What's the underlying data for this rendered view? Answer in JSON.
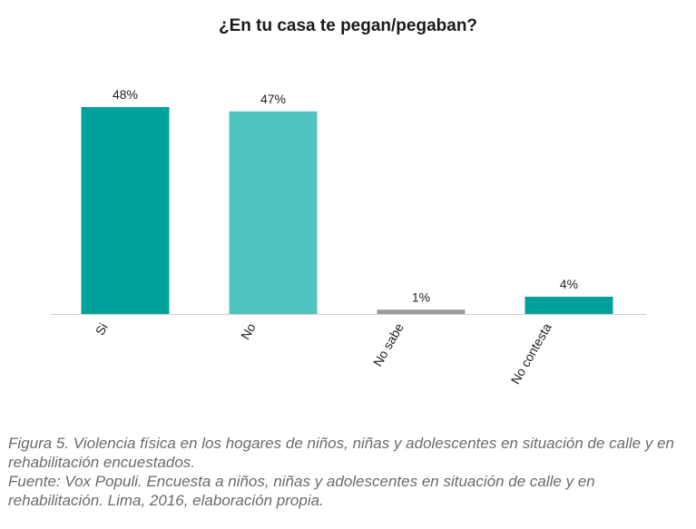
{
  "chart_data": {
    "type": "bar",
    "title": "¿En tu casa te pegan/pegaban?",
    "xlabel": "",
    "ylabel": "",
    "categories": [
      "Si",
      "No",
      "No sabe",
      "No contesta"
    ],
    "values": [
      48,
      47,
      1,
      4
    ],
    "value_labels": [
      "48%",
      "47%",
      "1%",
      "4%"
    ],
    "colors": [
      "#00a19c",
      "#4fc3bf",
      "#9a9a9a",
      "#00a19c"
    ],
    "ylim": [
      0,
      50
    ],
    "grid": false,
    "legend": "none"
  },
  "caption": {
    "figure": "Figura 5. Violencia física en los hogares de niños, niñas y adolescentes en situación de calle y en rehabilitación encuestados.",
    "source": "Fuente: Vox Populi. Encuesta a niños, niñas y adolescentes en situación de calle y en rehabilitación. Lima, 2016, elaboración propia."
  },
  "colors": {
    "axis": "#cfcfcf",
    "text": "#222222",
    "caption": "#6b6b6b"
  }
}
